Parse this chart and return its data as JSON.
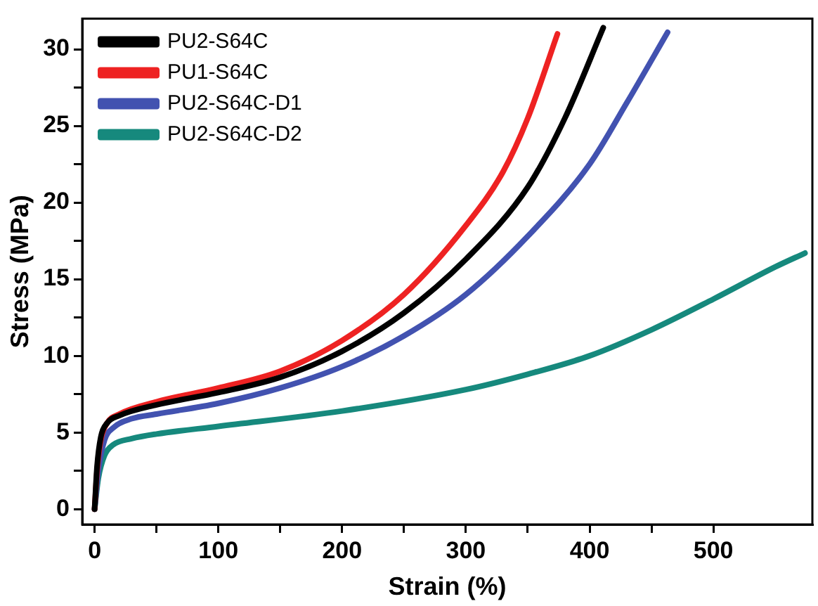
{
  "chart_data": {
    "type": "line",
    "xlabel": "Strain (%)",
    "ylabel": "Stress (MPa)",
    "xlim": [
      -10,
      580
    ],
    "xticks": [
      0,
      100,
      200,
      300,
      400,
      500
    ],
    "ylim": [
      -1,
      32
    ],
    "yticks": [
      0,
      5,
      10,
      15,
      20,
      25,
      30
    ],
    "grid": false,
    "legend": "top left",
    "marker": "none",
    "line_style": "solid",
    "series": [
      {
        "name": "PU2-S64C",
        "color": "#000000",
        "x": [
          0,
          2,
          5,
          10,
          20,
          50,
          100,
          150,
          200,
          250,
          300,
          350,
          380,
          411
        ],
        "values": [
          0,
          2.8,
          4.7,
          5.6,
          6.1,
          6.8,
          7.6,
          8.6,
          10.3,
          12.8,
          16.3,
          21,
          25.5,
          31.4
        ]
      },
      {
        "name": "PU1-S64C",
        "color": "#ee2222",
        "x": [
          0,
          2,
          5,
          10,
          20,
          50,
          100,
          150,
          200,
          250,
          300,
          330,
          350,
          374
        ],
        "values": [
          0,
          2.5,
          4.5,
          5.6,
          6.2,
          7,
          7.9,
          9,
          11,
          14,
          18.5,
          22,
          25.5,
          31
        ]
      },
      {
        "name": "PU2-S64C-D1",
        "color": "#4252b0",
        "x": [
          0,
          3,
          8,
          15,
          30,
          50,
          100,
          150,
          200,
          250,
          300,
          350,
          400,
          430,
          463
        ],
        "values": [
          0,
          2.5,
          4.5,
          5.3,
          5.9,
          6.2,
          6.9,
          7.9,
          9.3,
          11.3,
          14,
          17.8,
          22.5,
          26.5,
          31.1
        ]
      },
      {
        "name": "PU2-S64C-D2",
        "color": "#16897d",
        "x": [
          0,
          3,
          8,
          15,
          30,
          50,
          100,
          200,
          300,
          350,
          400,
          450,
          500,
          550,
          574
        ],
        "values": [
          0,
          2,
          3.5,
          4.2,
          4.6,
          4.9,
          5.4,
          6.4,
          7.8,
          8.8,
          10,
          11.7,
          13.7,
          15.8,
          16.7
        ]
      }
    ]
  }
}
